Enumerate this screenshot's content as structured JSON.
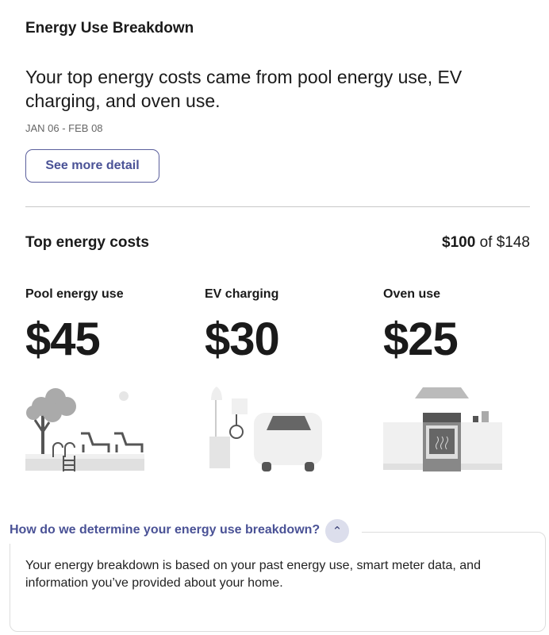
{
  "header": {
    "title": "Energy Use Breakdown",
    "headline": "Your top energy costs came from pool energy use, EV charging, and oven use.",
    "date_range": "JAN 06 - FEB 08",
    "see_more_label": "See more detail"
  },
  "top_costs": {
    "title": "Top energy costs",
    "shown_amount": "$100",
    "of_label": "of $148",
    "items": [
      {
        "label": "Pool energy use",
        "amount": "$45",
        "icon": "pool-illustration"
      },
      {
        "label": "EV charging",
        "amount": "$30",
        "icon": "ev-charging-illustration"
      },
      {
        "label": "Oven use",
        "amount": "$25",
        "icon": "oven-illustration"
      }
    ]
  },
  "faq": {
    "question": "How do we determine your energy use breakdown?",
    "expanded": true,
    "icon": "chevron-up-icon",
    "answer": "Your energy breakdown is based on your past energy use, smart meter data, and information you’ve provided about your home."
  },
  "colors": {
    "accent": "#4a5296",
    "chevron_bg": "#dcdeec"
  }
}
